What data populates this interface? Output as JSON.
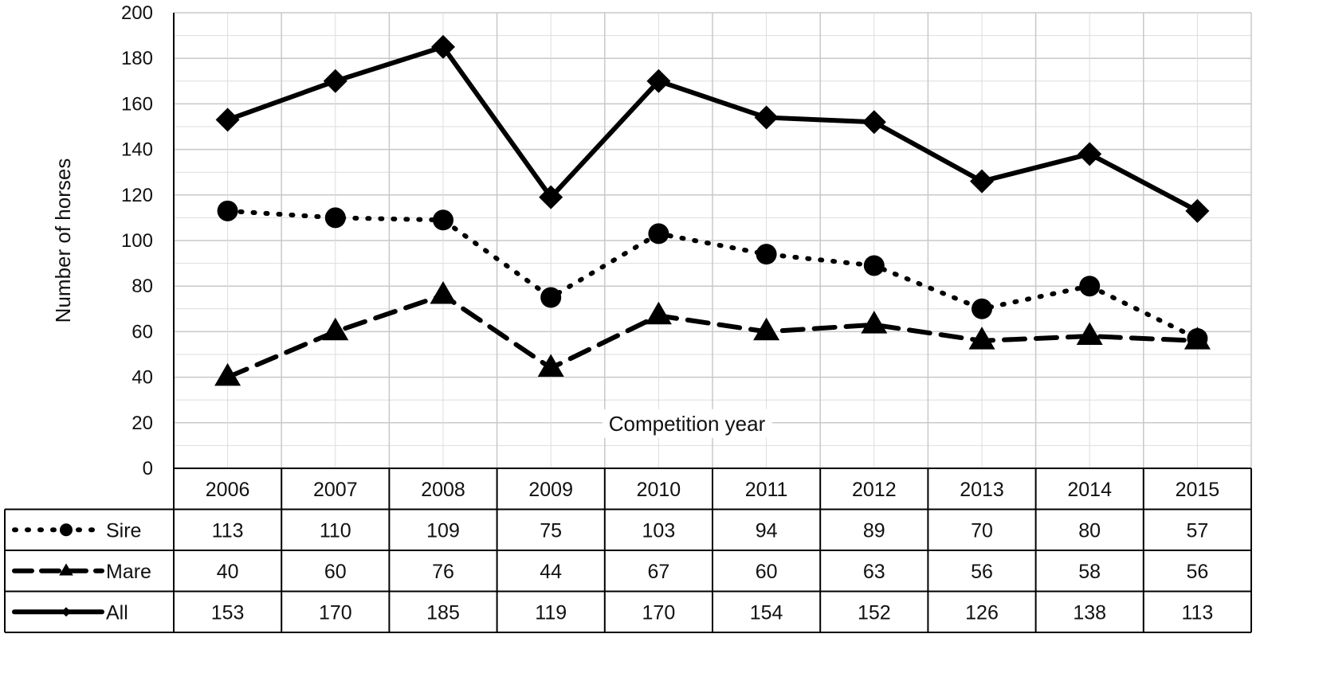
{
  "chart_data": {
    "type": "line",
    "title": "",
    "xlabel": "Competition year",
    "ylabel": "Number of horses",
    "ylim": [
      0,
      200
    ],
    "yticks": [
      0,
      20,
      40,
      60,
      80,
      100,
      120,
      140,
      160,
      180,
      200
    ],
    "grid": true,
    "legend": "data-table",
    "categories": [
      "2006",
      "2007",
      "2008",
      "2009",
      "2010",
      "2011",
      "2012",
      "2013",
      "2014",
      "2015"
    ],
    "series": [
      {
        "name": "Sire",
        "line_style": "dotted",
        "marker": "circle",
        "color": "#000000",
        "values": [
          113,
          110,
          109,
          75,
          103,
          94,
          89,
          70,
          80,
          57
        ]
      },
      {
        "name": "Mare",
        "line_style": "dashed",
        "marker": "triangle",
        "color": "#000000",
        "values": [
          40,
          60,
          76,
          44,
          67,
          60,
          63,
          56,
          58,
          56
        ]
      },
      {
        "name": "All",
        "line_style": "solid",
        "marker": "diamond",
        "color": "#000000",
        "values": [
          153,
          170,
          185,
          119,
          170,
          154,
          152,
          126,
          138,
          113
        ]
      }
    ]
  }
}
